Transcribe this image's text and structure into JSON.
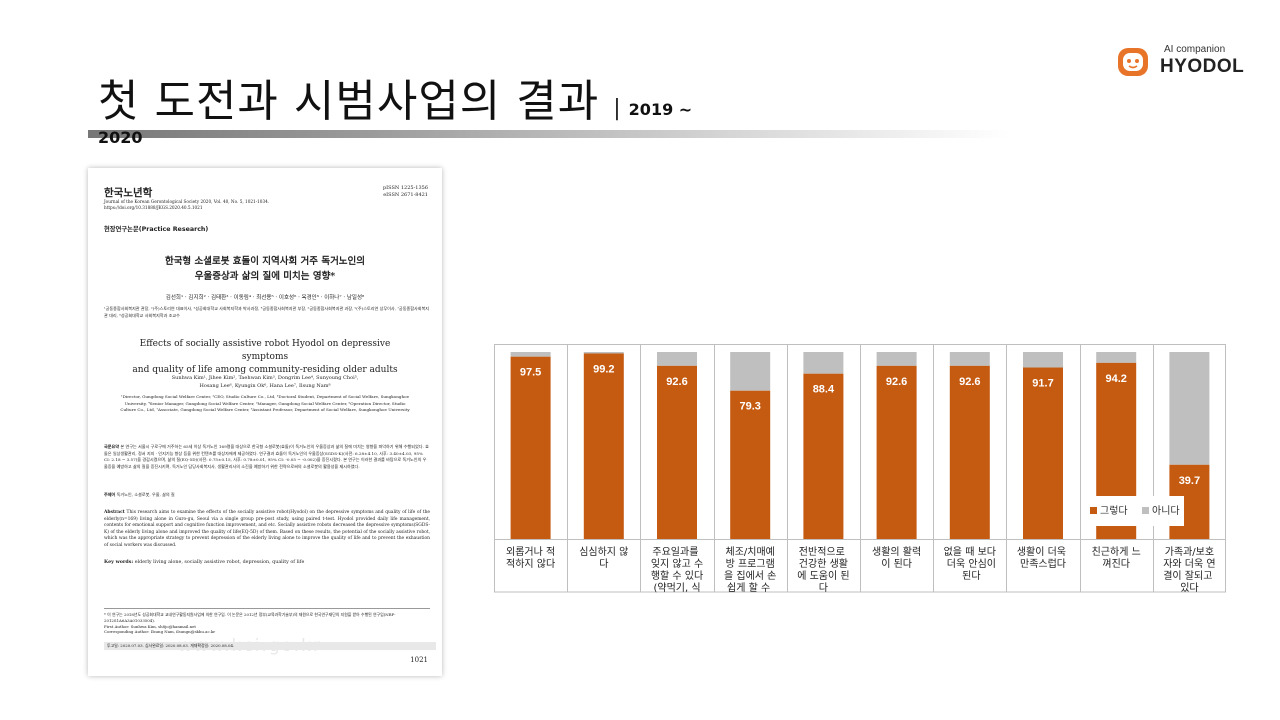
{
  "header": {
    "title": "첫 도전과 시범사업의 결과",
    "separator": "|",
    "year_range": "2019 ~",
    "year_end": "2020"
  },
  "logo": {
    "tagline": "AI companion",
    "name": "HYODOL",
    "badge_text": "효돌"
  },
  "paper": {
    "journal": "한국노년학",
    "journal_line": "Journal of the Korean Gerontological Society 2020, Vol. 40, No. 5, 1021-1034.",
    "doi": "https://doi.org/10.31888/JKGS.2020.40.5.1021",
    "pissn": "pISSN 1225-1356",
    "eissn": "eISSN 2671-8421",
    "type": "현장연구논문(Practice Research)",
    "kor_title_1": "한국형 소셜로봇 효돌이 지역사회 거주 독거노인의",
    "kor_title_2": "우울증상과 삶의 질에 미치는 영향*",
    "kor_authors": "김선희¹ · 김지희² · 김태환³ · 이동림⁴ · 최선용⁵ · 이호성⁶ · 옥경인⁶ · 이하나⁷ · 남일성⁸",
    "kor_affil": "¹궁동종합사회복지관 관장, ²(주)스토리연 대표이사, ³성공회대학교 사회복지학과 박사과정, ⁴궁동종합사회복지관 부장, ⁵궁동종합사회복지관 과장, ⁶(주)스토리연 상무이사, ⁷궁동종합사회복지관 대리, ⁸성공회대학교 사회복지학과 조교수",
    "eng_title_1": "Effects of socially assistive robot Hyodol on depressive symptoms",
    "eng_title_2": "and quality of life among community-residing older adults",
    "eng_authors_1": "Sunhwa Kim¹, Jihee Kim², Taehwan Kim³, Dongrim Lee⁴, Sunyoung Choi⁵,",
    "eng_authors_2": "Hosang Lee⁶, Kyungin Ok⁶, Hana Lee⁷, Ilsung Nam⁸",
    "eng_affil": "¹Director, Gungdong Social Welfare Center, ²CEO, Studio Culture Co., Ltd, ³Doctoral Student, Department of Social Welfare, Sungkonghoe University, ⁴Senior Manager, Gungdong Social Welfare Center, ⁵Manager, Gungdong Social Welfare Center, ⁶Operation Director, Studio Culture Co., Ltd, ⁷Associate, Gungdong Social Welfare Center, ⁸Assistant Professor, Department of Social Welfare, Sungkonghoe University",
    "kor_abstract_label": "국문요약",
    "kor_abstract": "본 연구는 서울시 구로구에 거주하는 65세 이상 독거노인 169명을 대상으로 한국형 소셜로봇(효돌)이 독거노인의 우울증상과 삶의 질에 미치는 영향을 파악하기 위해 수행되었다. 효돌은 일상생활관리, 정서 지지 · 인지기능 향상 등을 위한 컨텐츠를 대상자에게 제공하였다. 연구결과 효돌이 독거노인의 우울증상(SGDS-K)(사전: 6.28±4.10, 사후: 3.40±4.03, 95% CI: 2.18 ~ 3.57)을 경감시켰으며, 삶의 질(EQ-5D)(사전: 0.75±0.15, 사후: 0.78±0.01, 95% CI: -0.05 ~ -0.002)을 증진시켰다. 본 연구는 이러한 결과를 바탕으로 독거노인의 우울증을 예방하고 삶의 질을 증진시키며, 독거노인 담당사회복지사, 생활관리사의 소진을 예방하기 위한 전략으로써의 소셜로봇의 활용성을 제시하였다.",
    "kor_keywords_label": "주제어",
    "kor_keywords": "독거노인, 소셜로봇, 우울, 삶의 질",
    "eng_abstract_label": "Abstract",
    "eng_abstract": "This research aims to examine the effects of the socially assistive robot(Hyodol) on the depressive symptoms and quality of life of the elderly(n=169) living alone in Guro-gu, Seoul via a single group pre-post study, using paired t-test. Hyodol provided daily life management, contents for emotional support and cognitive function improvement, and etc. Socially assistive robots decreased the depressive symptoms(SGDS-K) of the elderly living alone and improved the quality of life(EQ-5D) of them. Based on these results, the potential of the socially assistive robot, which was the appropriate strategy to prevent depression of the elderly living alone to improve the quality of life and to prevent the exhaustion of social workers was discussed.",
    "eng_keywords_label": "Key words:",
    "eng_keywords": "elderly living alone, socially assistive robot, depression, quality of life",
    "footnote_1": "* 이 연구는 2018년도 성공회대학교 교내연구활동지원사업에 의한 연구임. 이 논문은 2012년 정부(교육과학기술부)의 재원으로 한국연구재단의 지원을 받아 수행된 연구임(NRF-2012S1A6A3A01033504).",
    "first_author": "First Author: Sunhwa Kim, sh8jo@hanmail.net",
    "corresponding": "Corresponding Author: Ilsung Nam, ilsungn@skhu.ac.kr",
    "dates": "투고일: 2020.07.03.    심사완료일: 2020.08.03.    게재확정일: 2020.08.04.",
    "page": "1021",
    "watermark": "www.kci.go.kr"
  },
  "chart_data": {
    "type": "bar",
    "stacked": true,
    "percent": true,
    "categories": [
      "외롭거나 적적하지 않다",
      "심심하지 않다",
      "주요일과를 잊지 않고 수행할 수 있다(약먹기, 식사)",
      "체조/치매예방 프로그램을 집에서 손쉽게 할 수 있다",
      "전반적으로 건강한 생활에 도움이 된다",
      "생활의 활력이 된다",
      "없을 때 보다 더욱 안심이 된다",
      "생활이 더욱 만족스럽다",
      "친근하게 느껴진다",
      "가족과/보호자와 더욱 연결이 잘되고 있다"
    ],
    "series": [
      {
        "name": "그렇다",
        "color": "#C55A11",
        "values": [
          97.5,
          99.2,
          92.6,
          79.3,
          88.4,
          92.6,
          92.6,
          91.7,
          94.2,
          39.7
        ]
      },
      {
        "name": "아니다",
        "color": "#BFBFBF",
        "values": [
          2.5,
          0.8,
          7.4,
          20.7,
          11.6,
          7.4,
          7.4,
          8.3,
          5.8,
          60.3
        ]
      }
    ],
    "data_labels": [
      "97.5",
      "99.2",
      "92.6",
      "79.3",
      "88.4",
      "92.6",
      "92.6",
      "91.7",
      "94.2",
      "39.7"
    ],
    "ylim": [
      0,
      100
    ],
    "legend_position": "bottom-right inside"
  }
}
